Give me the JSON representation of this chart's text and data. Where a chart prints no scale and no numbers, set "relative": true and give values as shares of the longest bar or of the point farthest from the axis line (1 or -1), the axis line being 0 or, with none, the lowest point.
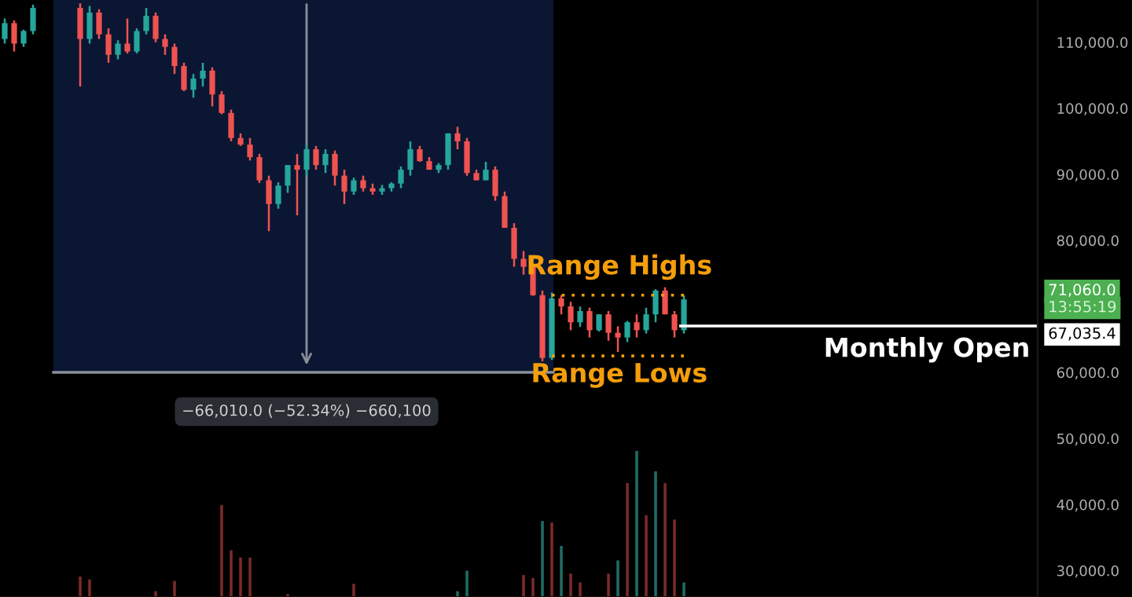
{
  "chart_data": [
    {
      "type": "candlestick",
      "categories": [
        null,
        null,
        null,
        null,
        null,
        null,
        null,
        null,
        null,
        null,
        null,
        null,
        null,
        null,
        null,
        null,
        null,
        null,
        null,
        null,
        null,
        null,
        null,
        null,
        null,
        null,
        null,
        null,
        null,
        null,
        null,
        null,
        null,
        null,
        null,
        null,
        null,
        null,
        null,
        null,
        null,
        null,
        null,
        null,
        null,
        null,
        null,
        null,
        null,
        null,
        null,
        null,
        null,
        null,
        null,
        null,
        null,
        null,
        null,
        null,
        null,
        null,
        null,
        null,
        null,
        null,
        null,
        null,
        null,
        null,
        null,
        null,
        null,
        null,
        null,
        null,
        null,
        null,
        null,
        null,
        null,
        null,
        null,
        null,
        null,
        null,
        null,
        null,
        null,
        null,
        null,
        null,
        null,
        null,
        null,
        null,
        null,
        null,
        null,
        null,
        null,
        null,
        null,
        null,
        null,
        null,
        null,
        null,
        null,
        null
      ],
      "ohlc": [
        [
          110500,
          113600,
          109800,
          112900
        ],
        [
          112900,
          113300,
          108600,
          109800
        ],
        [
          109800,
          111900,
          109300,
          111700
        ],
        [
          111700,
          115700,
          111200,
          115200
        ],
        null,
        null,
        null,
        null,
        [
          115200,
          115900,
          103300,
          110500
        ],
        [
          110500,
          115500,
          109800,
          114500
        ],
        [
          114500,
          115000,
          110500,
          111200
        ],
        [
          111200,
          112100,
          106900,
          108100
        ],
        [
          108100,
          110300,
          107400,
          109800
        ],
        [
          109800,
          113600,
          108300,
          108600
        ],
        [
          108600,
          112100,
          108300,
          111700
        ],
        [
          111700,
          115200,
          111200,
          114000
        ],
        [
          114000,
          114500,
          110000,
          110500
        ],
        [
          110500,
          111200,
          108100,
          109300
        ],
        [
          109300,
          109800,
          105200,
          106400
        ],
        [
          106400,
          106900,
          102600,
          102800
        ],
        [
          102800,
          105200,
          101600,
          104500
        ],
        [
          104500,
          106900,
          103300,
          105700
        ],
        [
          105700,
          106200,
          100300,
          102100
        ],
        [
          102100,
          102600,
          99100,
          99300
        ],
        [
          99300,
          99800,
          95000,
          95500
        ],
        [
          95500,
          96200,
          94300,
          94500
        ],
        [
          94500,
          95500,
          92100,
          92600
        ],
        [
          92600,
          93100,
          88700,
          89100
        ],
        [
          89100,
          89800,
          81400,
          85500
        ],
        [
          85500,
          88800,
          84800,
          88300
        ],
        [
          88300,
          91400,
          87200,
          91400
        ],
        [
          91400,
          93100,
          83800,
          90700
        ],
        [
          90700,
          94500,
          89800,
          93800
        ],
        [
          93800,
          94300,
          90700,
          91400
        ],
        [
          91400,
          93800,
          90200,
          93100
        ],
        [
          93100,
          93600,
          88300,
          89800
        ],
        [
          89800,
          90700,
          85500,
          87400
        ],
        [
          87400,
          89500,
          86900,
          89100
        ],
        [
          89100,
          89800,
          87400,
          87900
        ],
        [
          87900,
          88600,
          86900,
          87400
        ],
        [
          87400,
          88400,
          86900,
          87900
        ],
        [
          87900,
          88800,
          87400,
          88600
        ],
        [
          88600,
          91200,
          87900,
          90700
        ],
        [
          90700,
          95000,
          89800,
          93800
        ],
        [
          93800,
          94300,
          91900,
          92000
        ],
        [
          92000,
          92600,
          90700,
          90700
        ],
        [
          90700,
          91700,
          90200,
          91400
        ],
        [
          91400,
          96200,
          90700,
          96200
        ],
        [
          96200,
          97200,
          93800,
          95000
        ],
        [
          95000,
          95500,
          89800,
          90200
        ],
        [
          90200,
          90700,
          89100,
          89100
        ],
        [
          89100,
          91900,
          89100,
          90700
        ],
        [
          90700,
          91200,
          86000,
          86700
        ],
        [
          86700,
          87400,
          81900,
          81900
        ],
        [
          81900,
          82600,
          76000,
          77200
        ],
        [
          77200,
          78400,
          74800,
          76000
        ],
        [
          76000,
          76400,
          71600,
          71700
        ],
        [
          71700,
          72400,
          61700,
          62200
        ],
        [
          62200,
          72100,
          61900,
          71200
        ],
        [
          71200,
          71700,
          68800,
          70000
        ],
        [
          70000,
          70700,
          66400,
          67600
        ],
        [
          67600,
          70000,
          66900,
          69300
        ],
        [
          69300,
          69800,
          65300,
          66400
        ],
        [
          66400,
          68800,
          66200,
          68800
        ],
        [
          68800,
          69300,
          64800,
          66000
        ],
        [
          66000,
          67000,
          63100,
          65300
        ],
        [
          65300,
          67800,
          64600,
          67600
        ],
        [
          67600,
          68800,
          65300,
          66400
        ],
        [
          66400,
          69800,
          65900,
          68800
        ],
        [
          68800,
          72600,
          67600,
          72400
        ],
        [
          72400,
          72900,
          68800,
          68800
        ],
        [
          68800,
          69300,
          65300,
          66400
        ],
        [
          66400,
          71700,
          65900,
          71060
        ],
        null,
        null,
        null,
        null,
        null,
        null,
        null,
        null,
        null,
        null,
        null,
        null,
        null,
        null,
        null,
        null,
        null,
        null,
        null,
        null,
        null,
        null,
        null,
        null,
        null,
        null,
        null,
        null,
        null,
        null,
        null,
        null,
        null,
        null,
        null,
        null,
        null
      ],
      "colors": [
        "#26a69a",
        "#ef5350",
        "#26a69a",
        "#26a69a",
        null,
        null,
        null,
        null,
        "#ef5350",
        "#26a69a",
        "#ef5350",
        "#ef5350",
        "#26a69a",
        "#ef5350",
        "#26a69a",
        "#26a69a",
        "#ef5350",
        "#ef5350",
        "#ef5350",
        "#ef5350",
        "#26a69a",
        "#26a69a",
        "#ef5350",
        "#ef5350",
        "#ef5350",
        "#ef5350",
        "#ef5350",
        "#ef5350",
        "#ef5350",
        "#26a69a",
        "#26a69a",
        "#ef5350",
        "#26a69a",
        "#ef5350",
        "#26a69a",
        "#ef5350",
        "#ef5350",
        "#26a69a",
        "#ef5350",
        "#ef5350",
        "#26a69a",
        "#26a69a",
        "#26a69a",
        "#26a69a",
        "#ef5350",
        "#ef5350",
        "#26a69a",
        "#26a69a",
        "#ef5350",
        "#ef5350",
        "#ef5350",
        "#26a69a",
        "#ef5350",
        "#ef5350",
        "#ef5350",
        "#ef5350",
        "#ef5350",
        "#ef5350",
        "#26a69a",
        "#ef5350",
        "#ef5350",
        "#26a69a",
        "#ef5350",
        "#26a69a",
        "#ef5350",
        "#ef5350",
        "#26a69a",
        "#ef5350",
        "#26a69a",
        "#26a69a",
        "#ef5350",
        "#ef5350",
        "#26a69a",
        null,
        null,
        null,
        null,
        null,
        null,
        null,
        null,
        null,
        null,
        null,
        null,
        null,
        null,
        null,
        null,
        null,
        null,
        null,
        null,
        null,
        null,
        null,
        null,
        null,
        null,
        null,
        null,
        null,
        null,
        null,
        null,
        null,
        null,
        null,
        null,
        null
      ],
      "ylim": [
        26000,
        116400
      ],
      "yticks": [
        {
          "value": 30000,
          "label": "30,000.0"
        },
        {
          "value": 40000,
          "label": "40,000.0"
        },
        {
          "value": 50000,
          "label": "50,000.0"
        },
        {
          "value": 60000,
          "label": "60,000.0"
        },
        {
          "value": 80000,
          "label": "80,000.0"
        },
        {
          "value": 90000,
          "label": "90,000.0"
        },
        {
          "value": 100000,
          "label": "100,000.0"
        },
        {
          "value": 110000,
          "label": "110,000.0"
        }
      ],
      "tick_labels": "y",
      "ref_lines": [
        {
          "axis": "y",
          "value": 71700,
          "label": "Range Highs",
          "color": "#f59e0b",
          "line_style": "dotted"
        },
        {
          "axis": "y",
          "value": 62500,
          "label": "Range Lows",
          "color": "#f59e0b",
          "line_style": "dotted"
        },
        {
          "axis": "y",
          "value": 67035.4,
          "label": "Monthly Open",
          "color": "#ffffff",
          "line_style": "solid"
        }
      ],
      "annotations": [
        {
          "text": "−66,010.0 (−52.34%) −660,100"
        },
        "71,060.0",
        "13:55:19",
        "67,035.4"
      ]
    },
    {
      "type": "bar",
      "relative": true,
      "categories": [
        null,
        null,
        null,
        null,
        null,
        null,
        null,
        null,
        null,
        null,
        null,
        null,
        null,
        null,
        null,
        null,
        null,
        null,
        null,
        null,
        null,
        null,
        null,
        null,
        null,
        null,
        null,
        null,
        null,
        null,
        null,
        null,
        null,
        null,
        null,
        null,
        null,
        null,
        null,
        null,
        null,
        null,
        null,
        null,
        null,
        null,
        null,
        null,
        null,
        null,
        null,
        null,
        null,
        null,
        null,
        null,
        null,
        null,
        null,
        null,
        null,
        null,
        null,
        null,
        null,
        null,
        null,
        null,
        null,
        null,
        null,
        null,
        null,
        null,
        null,
        null,
        null,
        null,
        null,
        null,
        null,
        null,
        null,
        null,
        null,
        null,
        null,
        null,
        null,
        null,
        null,
        null,
        null,
        null,
        null,
        null,
        null,
        null,
        null,
        null,
        null,
        null,
        null,
        null,
        null,
        null,
        null,
        null,
        null,
        null
      ],
      "values": [
        null,
        null,
        null,
        null,
        null,
        null,
        null,
        null,
        0.14,
        0.12,
        null,
        null,
        null,
        null,
        null,
        null,
        0.04,
        null,
        0.11,
        null,
        null,
        null,
        null,
        0.63,
        0.32,
        0.27,
        0.27,
        null,
        null,
        null,
        0.02,
        null,
        null,
        null,
        null,
        null,
        null,
        0.09,
        null,
        null,
        null,
        null,
        null,
        null,
        null,
        null,
        null,
        null,
        0.04,
        0.18,
        null,
        null,
        null,
        null,
        null,
        0.15,
        0.13,
        0.52,
        0.51,
        0.35,
        0.16,
        0.1,
        null,
        null,
        0.16,
        0.25,
        0.78,
        1,
        0.56,
        0.86,
        0.78,
        0.53,
        0.1,
        null,
        null,
        null,
        null,
        null,
        null,
        null,
        null,
        null,
        null,
        null,
        null,
        null,
        null,
        null,
        null,
        null,
        null,
        null,
        null,
        null,
        null,
        null,
        null,
        null,
        null,
        null,
        null,
        null,
        null,
        null,
        null,
        null,
        null,
        null,
        null,
        null
      ],
      "colors": [
        "#7a2a2a",
        "#7a2a2a",
        "#7a2a2a",
        "#7a2a2a",
        "#7a2a2a",
        "#7a2a2a",
        "#7a2a2a",
        "#7a2a2a",
        "#7a2a2a",
        "#7a2a2a",
        "#7a2a2a",
        "#7a2a2a",
        "#7a2a2a",
        "#7a2a2a",
        "#7a2a2a",
        "#7a2a2a",
        "#7a2a2a",
        "#7a2a2a",
        "#7a2a2a",
        "#7a2a2a",
        "#7a2a2a",
        "#7a2a2a",
        "#7a2a2a",
        "#7a2a2a",
        "#7a2a2a",
        "#7a2a2a",
        "#7a2a2a",
        "#7a2a2a",
        "#7a2a2a",
        "#7a2a2a",
        "#7a2a2a",
        "#7a2a2a",
        "#7a2a2a",
        "#7a2a2a",
        "#7a2a2a",
        "#7a2a2a",
        "#7a2a2a",
        "#7a2a2a",
        "#7a2a2a",
        "#7a2a2a",
        "#7a2a2a",
        "#7a2a2a",
        "#7a2a2a",
        "#7a2a2a",
        "#7a2a2a",
        "#7a2a2a",
        "#7a2a2a",
        "#7a2a2a",
        "#1f6b63",
        "#1f6b63",
        "#7a2a2a",
        "#7a2a2a",
        "#7a2a2a",
        "#7a2a2a",
        "#7a2a2a",
        "#7a2a2a",
        "#7a2a2a",
        "#1f6b63",
        "#7a2a2a",
        "#1f6b63",
        "#7a2a2a",
        "#7a2a2a",
        "#7a2a2a",
        "#7a2a2a",
        "#7a2a2a",
        "#1f6b63",
        "#7a2a2a",
        "#1f6b63",
        "#7a2a2a",
        "#1f6b63",
        "#7a2a2a",
        "#7a2a2a",
        "#1f6b63",
        null,
        null,
        null,
        null,
        null,
        null,
        null,
        null,
        null,
        null,
        null,
        null,
        null,
        null,
        null,
        null,
        null,
        null,
        null,
        null,
        null,
        null,
        null,
        null,
        null,
        null,
        null,
        null,
        null,
        null,
        null,
        null,
        null,
        null,
        null,
        null,
        null
      ]
    }
  ]
}
